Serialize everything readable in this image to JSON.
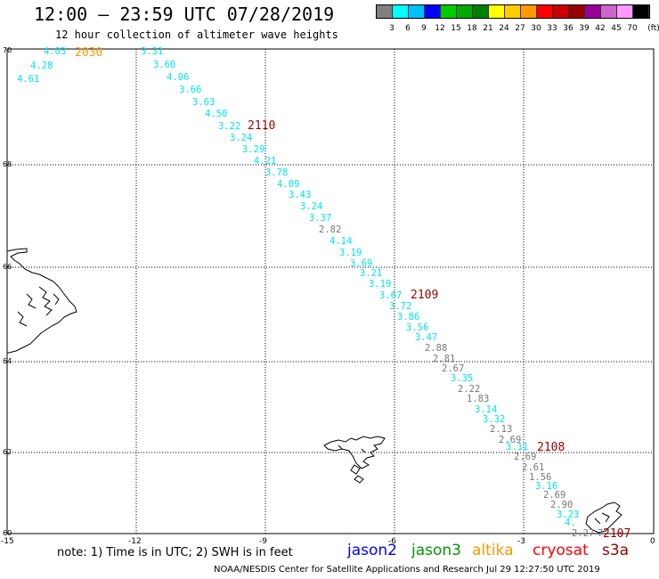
{
  "header": {
    "title": "12:00 – 23:59 UTC 07/28/2019",
    "subtitle": "12 hour collection of altimeter wave heights"
  },
  "scale": {
    "unit": "(ft)",
    "colors": [
      "#808080",
      "#00ffff",
      "#00bfff",
      "#0000ff",
      "#00cc00",
      "#00aa00",
      "#008000",
      "#ffff00",
      "#ffcc00",
      "#ff9900",
      "#ff0000",
      "#cc0000",
      "#990000",
      "#990099",
      "#cc66cc",
      "#ff99ff",
      "#000000"
    ],
    "labels": [
      "3",
      "6",
      "9",
      "12",
      "15",
      "18",
      "21",
      "24",
      "27",
      "30",
      "33",
      "36",
      "39",
      "42",
      "45",
      "70"
    ]
  },
  "axes": {
    "lat_labels": [
      "70",
      "68",
      "66",
      "64",
      "62",
      "60"
    ],
    "lon_labels": [
      "-15",
      "-12",
      "-9",
      "-6",
      "-3",
      "0"
    ]
  },
  "passes": [
    {
      "label": "2030",
      "color": "#ff9900"
    },
    {
      "label": "2110",
      "color": "#990000"
    },
    {
      "label": "2109",
      "color": "#990000"
    },
    {
      "label": "2108",
      "color": "#990000"
    },
    {
      "label": "2107",
      "color": "#990000"
    }
  ],
  "wave_heights": [
    {
      "v": "4.03",
      "c": "cyan"
    },
    {
      "v": "4.28",
      "c": "cyan"
    },
    {
      "v": "4.61",
      "c": "cyan"
    },
    {
      "v": "3.31",
      "c": "cyan"
    },
    {
      "v": "3.60",
      "c": "cyan"
    },
    {
      "v": "4.06",
      "c": "cyan"
    },
    {
      "v": "3.66",
      "c": "cyan"
    },
    {
      "v": "3.63",
      "c": "cyan"
    },
    {
      "v": "4.50",
      "c": "cyan"
    },
    {
      "v": "3.22",
      "c": "cyan"
    },
    {
      "v": "3.24",
      "c": "cyan"
    },
    {
      "v": "3.29",
      "c": "cyan"
    },
    {
      "v": "4.21",
      "c": "cyan"
    },
    {
      "v": "3.78",
      "c": "cyan"
    },
    {
      "v": "4.09",
      "c": "cyan"
    },
    {
      "v": "3.43",
      "c": "cyan"
    },
    {
      "v": "3.24",
      "c": "cyan"
    },
    {
      "v": "3.37",
      "c": "cyan"
    },
    {
      "v": "2.82",
      "c": "gray"
    },
    {
      "v": "4.14",
      "c": "cyan"
    },
    {
      "v": "3.19",
      "c": "cyan"
    },
    {
      "v": "3.69",
      "c": "cyan"
    },
    {
      "v": "3.21",
      "c": "cyan"
    },
    {
      "v": "3.19",
      "c": "cyan"
    },
    {
      "v": "3.67",
      "c": "cyan"
    },
    {
      "v": "3.72",
      "c": "cyan"
    },
    {
      "v": "3.86",
      "c": "cyan"
    },
    {
      "v": "3.56",
      "c": "cyan"
    },
    {
      "v": "3.47",
      "c": "cyan"
    },
    {
      "v": "2.88",
      "c": "gray"
    },
    {
      "v": "2.81",
      "c": "gray"
    },
    {
      "v": "2.67",
      "c": "gray"
    },
    {
      "v": "3.35",
      "c": "cyan"
    },
    {
      "v": "2.22",
      "c": "gray"
    },
    {
      "v": "1.83",
      "c": "gray"
    },
    {
      "v": "3.14",
      "c": "cyan"
    },
    {
      "v": "3.32",
      "c": "cyan"
    },
    {
      "v": "2.13",
      "c": "gray"
    },
    {
      "v": "2.69",
      "c": "gray"
    },
    {
      "v": "3.11",
      "c": "cyan"
    },
    {
      "v": "2.69",
      "c": "gray"
    },
    {
      "v": "2.61",
      "c": "gray"
    },
    {
      "v": "1.56",
      "c": "gray"
    },
    {
      "v": "3.16",
      "c": "cyan"
    },
    {
      "v": "2.69",
      "c": "gray"
    },
    {
      "v": "2.90",
      "c": "gray"
    },
    {
      "v": "3.23",
      "c": "cyan"
    },
    {
      "v": "4.",
      "c": "cyan"
    },
    {
      "v": "2.27",
      "c": "gray"
    },
    {
      "v": "7",
      "c": "gray"
    }
  ],
  "footer": {
    "note": "note:  1) Time is in UTC;  2) SWH is in feet",
    "satellites": [
      {
        "name": "jason2",
        "color": "#0000ff"
      },
      {
        "name": "jason3",
        "color": "#009900"
      },
      {
        "name": "altika",
        "color": "#ff9900"
      },
      {
        "name": "cryosat",
        "color": "#ff0000"
      },
      {
        "name": "s3a",
        "color": "#990000"
      }
    ],
    "credit": "NOAA/NESDIS Center for Satellite Applications and Research   Jul 29 12:27:50 UTC 2019"
  }
}
